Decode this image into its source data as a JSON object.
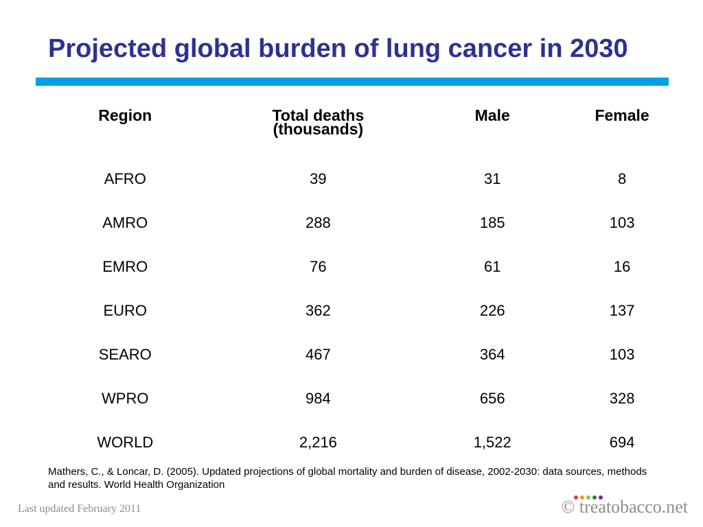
{
  "title": "Projected global burden of lung cancer in 2030",
  "colors": {
    "title": "#2e3192",
    "accent_rule": "#00a0e6",
    "footer_text": "#8a8a8a"
  },
  "table": {
    "headers": {
      "region": "Region",
      "total_line1": "Total deaths",
      "total_line2": "(thousands)",
      "male": "Male",
      "female": "Female"
    },
    "rows": [
      {
        "region": "AFRO",
        "total": "39",
        "male": "31",
        "female": "8"
      },
      {
        "region": "AMRO",
        "total": "288",
        "male": "185",
        "female": "103"
      },
      {
        "region": "EMRO",
        "total": "76",
        "male": "61",
        "female": "16"
      },
      {
        "region": "EURO",
        "total": "362",
        "male": "226",
        "female": "137"
      },
      {
        "region": "SEARO",
        "total": "467",
        "male": "364",
        "female": "103"
      },
      {
        "region": "WPRO",
        "total": "984",
        "male": "656",
        "female": "328"
      },
      {
        "region": "WORLD",
        "total": "2,216",
        "male": "1,522",
        "female": "694"
      }
    ]
  },
  "citation": "Mathers, C., & Loncar, D. (2005). Updated projections of global mortality and burden of disease, 2002-2030: data sources, methods and results. World Health Organization",
  "footer": {
    "updated": "Last updated February 2011",
    "copyright_symbol": "©",
    "brand": "treatobacco.net",
    "brand_dot_colors": [
      "#e53935",
      "#f39c12",
      "#8bc34a",
      "#2e7d32",
      "#7b1fa2"
    ]
  }
}
